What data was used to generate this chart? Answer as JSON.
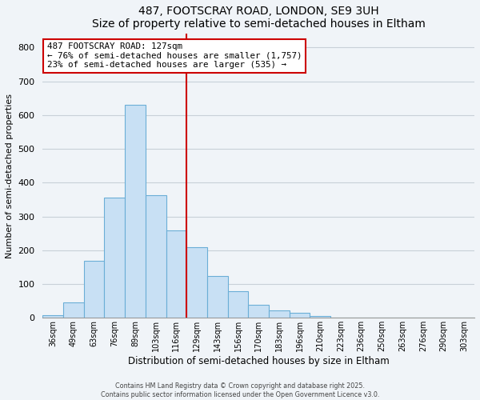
{
  "title": "487, FOOTSCRAY ROAD, LONDON, SE9 3UH",
  "subtitle": "Size of property relative to semi-detached houses in Eltham",
  "xlabel": "Distribution of semi-detached houses by size in Eltham",
  "ylabel": "Number of semi-detached properties",
  "bar_labels": [
    "36sqm",
    "49sqm",
    "63sqm",
    "76sqm",
    "89sqm",
    "103sqm",
    "116sqm",
    "129sqm",
    "143sqm",
    "156sqm",
    "170sqm",
    "183sqm",
    "196sqm",
    "210sqm",
    "223sqm",
    "236sqm",
    "250sqm",
    "263sqm",
    "276sqm",
    "290sqm",
    "303sqm"
  ],
  "bar_values": [
    8,
    45,
    168,
    355,
    630,
    362,
    258,
    210,
    125,
    78,
    38,
    23,
    14,
    6,
    2,
    1,
    1,
    0,
    0,
    0,
    1
  ],
  "bar_color": "#c8e0f4",
  "bar_edge_color": "#6baed6",
  "vline_color": "#cc0000",
  "annotation_title": "487 FOOTSCRAY ROAD: 127sqm",
  "annotation_line1": "← 76% of semi-detached houses are smaller (1,757)",
  "annotation_line2": "23% of semi-detached houses are larger (535) →",
  "annotation_box_color": "#ffffff",
  "annotation_box_edge": "#cc0000",
  "ylim": [
    0,
    840
  ],
  "yticks": [
    0,
    100,
    200,
    300,
    400,
    500,
    600,
    700,
    800
  ],
  "footer1": "Contains HM Land Registry data © Crown copyright and database right 2025.",
  "footer2": "Contains public sector information licensed under the Open Government Licence v3.0.",
  "background_color": "#f0f4f8",
  "grid_color": "#c8d0d8"
}
